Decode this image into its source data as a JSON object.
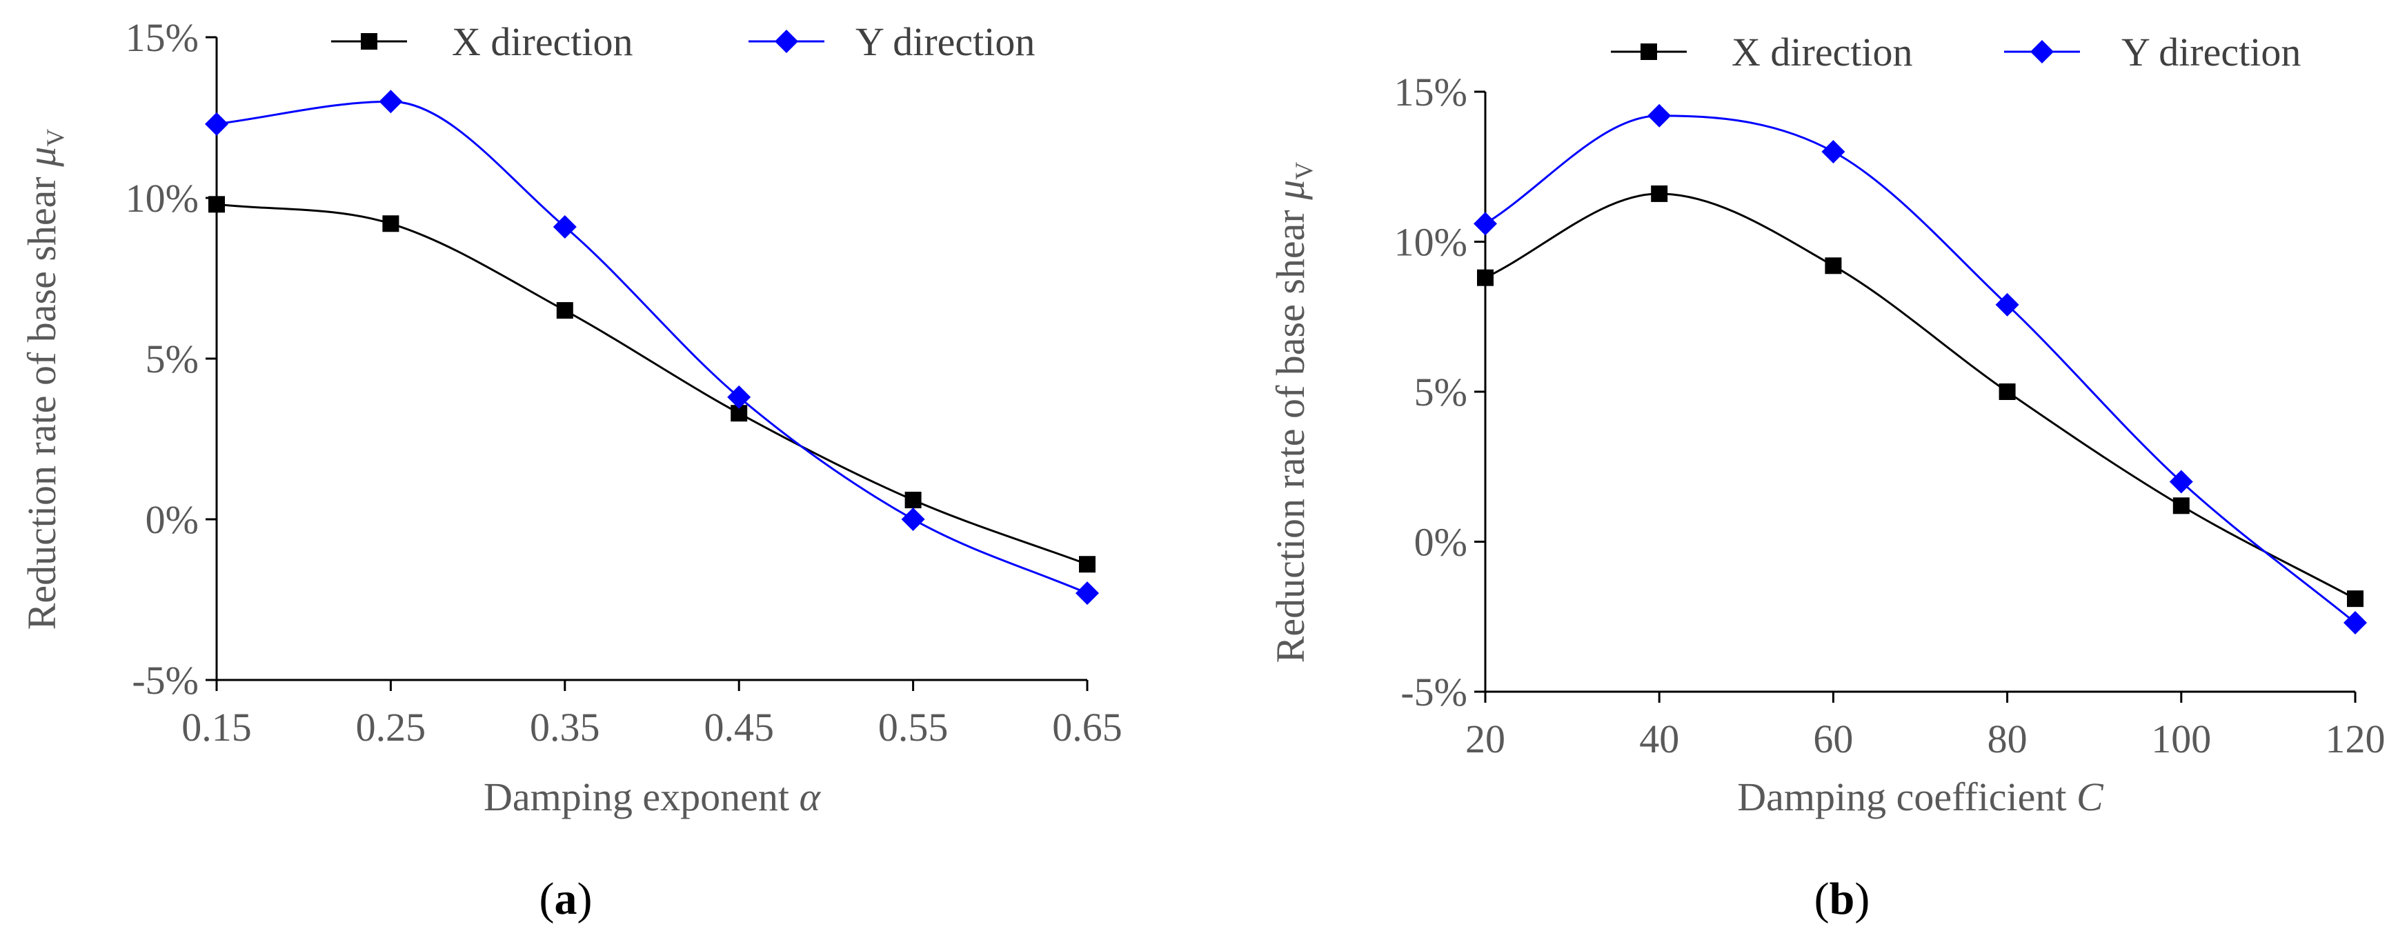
{
  "chart_data": [
    {
      "type": "line",
      "panel_label": "a",
      "title": "",
      "xlabel": "Damping exponent",
      "xlabel_symbol": "α",
      "ylabel": "Reduction rate of base shear",
      "ylabel_symbol": "μ",
      "ylabel_subscript": "V",
      "x": [
        0.15,
        0.25,
        0.35,
        0.45,
        0.55,
        0.65
      ],
      "x_tick_labels": [
        "0.15",
        "0.25",
        "0.35",
        "0.45",
        "0.55",
        "0.65"
      ],
      "xlim": [
        0.15,
        0.65
      ],
      "ylim": [
        -5,
        15
      ],
      "y_ticks": [
        -5,
        0,
        5,
        10,
        15
      ],
      "y_tick_labels": [
        "-5%",
        "0%",
        "5%",
        "10%",
        "15%"
      ],
      "grid": false,
      "legend_position": "top",
      "series": [
        {
          "name": "X direction",
          "marker": "square",
          "color": "#000000",
          "values": [
            9.8,
            9.2,
            6.5,
            3.3,
            0.6,
            -1.4
          ]
        },
        {
          "name": "Y direction",
          "marker": "diamond",
          "color": "#0000ff",
          "values": [
            12.3,
            13.0,
            9.1,
            3.8,
            0.0,
            -2.3
          ]
        }
      ]
    },
    {
      "type": "line",
      "panel_label": "b",
      "title": "",
      "xlabel": "Damping coefficient",
      "xlabel_symbol": "C",
      "ylabel": "Reduction rate of base shear",
      "ylabel_symbol": "μ",
      "ylabel_subscript": "V",
      "x": [
        20,
        40,
        60,
        80,
        100,
        120
      ],
      "x_tick_labels": [
        "20",
        "40",
        "60",
        "80",
        "100",
        "120"
      ],
      "xlim": [
        20,
        120
      ],
      "ylim": [
        -5,
        15
      ],
      "y_ticks": [
        -5,
        0,
        5,
        10,
        15
      ],
      "y_tick_labels": [
        "-5%",
        "0%",
        "5%",
        "10%",
        "15%"
      ],
      "grid": false,
      "legend_position": "top",
      "series": [
        {
          "name": "X direction",
          "marker": "square",
          "color": "#000000",
          "values": [
            8.8,
            11.6,
            9.2,
            5.0,
            1.2,
            -1.9
          ]
        },
        {
          "name": "Y direction",
          "marker": "diamond",
          "color": "#0000ff",
          "values": [
            10.6,
            14.2,
            13.0,
            7.9,
            2.0,
            -2.7
          ]
        }
      ]
    }
  ]
}
